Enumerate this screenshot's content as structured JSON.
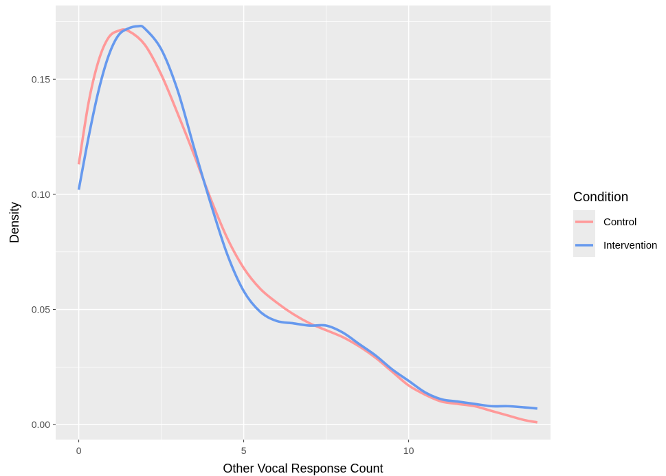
{
  "chart_data": {
    "type": "line",
    "xlabel": "Other Vocal Response Count",
    "ylabel": "Density",
    "xlim": [
      -0.7,
      14.3
    ],
    "ylim": [
      -0.0065,
      0.182
    ],
    "x_ticks": [
      0,
      5,
      10
    ],
    "x_tick_labels": [
      "0",
      "5",
      "10"
    ],
    "y_ticks": [
      0.0,
      0.05,
      0.1,
      0.15
    ],
    "y_tick_labels": [
      "0.00",
      "0.05",
      "0.10",
      "0.15"
    ],
    "grid": true,
    "legend": {
      "title": "Condition",
      "position": "right"
    },
    "series": [
      {
        "name": "Control",
        "color": "#FF9999",
        "points": [
          [
            0,
            0.113
          ],
          [
            0.3,
            0.14
          ],
          [
            0.6,
            0.158
          ],
          [
            0.9,
            0.168
          ],
          [
            1.2,
            0.171
          ],
          [
            1.5,
            0.171
          ],
          [
            2.0,
            0.165
          ],
          [
            2.5,
            0.152
          ],
          [
            3.0,
            0.135
          ],
          [
            3.5,
            0.117
          ],
          [
            4.0,
            0.098
          ],
          [
            4.5,
            0.081
          ],
          [
            5.0,
            0.068
          ],
          [
            5.5,
            0.059
          ],
          [
            6.0,
            0.053
          ],
          [
            6.5,
            0.048
          ],
          [
            7.0,
            0.044
          ],
          [
            7.5,
            0.041
          ],
          [
            8.0,
            0.038
          ],
          [
            8.5,
            0.034
          ],
          [
            9.0,
            0.029
          ],
          [
            9.5,
            0.023
          ],
          [
            10.0,
            0.017
          ],
          [
            10.5,
            0.013
          ],
          [
            11.0,
            0.01
          ],
          [
            11.5,
            0.009
          ],
          [
            12.0,
            0.008
          ],
          [
            12.5,
            0.006
          ],
          [
            13.0,
            0.004
          ],
          [
            13.5,
            0.002
          ],
          [
            13.9,
            0.001
          ]
        ]
      },
      {
        "name": "Intervention",
        "color": "#6699EE",
        "points": [
          [
            0,
            0.102
          ],
          [
            0.3,
            0.125
          ],
          [
            0.6,
            0.145
          ],
          [
            0.9,
            0.16
          ],
          [
            1.2,
            0.169
          ],
          [
            1.5,
            0.172
          ],
          [
            1.8,
            0.173
          ],
          [
            2.0,
            0.172
          ],
          [
            2.5,
            0.163
          ],
          [
            3.0,
            0.145
          ],
          [
            3.5,
            0.12
          ],
          [
            4.0,
            0.096
          ],
          [
            4.5,
            0.074
          ],
          [
            5.0,
            0.058
          ],
          [
            5.5,
            0.049
          ],
          [
            6.0,
            0.045
          ],
          [
            6.5,
            0.044
          ],
          [
            7.0,
            0.043
          ],
          [
            7.5,
            0.043
          ],
          [
            8.0,
            0.04
          ],
          [
            8.5,
            0.035
          ],
          [
            9.0,
            0.03
          ],
          [
            9.5,
            0.024
          ],
          [
            10.0,
            0.019
          ],
          [
            10.5,
            0.014
          ],
          [
            11.0,
            0.011
          ],
          [
            11.5,
            0.01
          ],
          [
            12.0,
            0.009
          ],
          [
            12.5,
            0.008
          ],
          [
            13.0,
            0.008
          ],
          [
            13.5,
            0.0075
          ],
          [
            13.9,
            0.007
          ]
        ]
      }
    ]
  }
}
